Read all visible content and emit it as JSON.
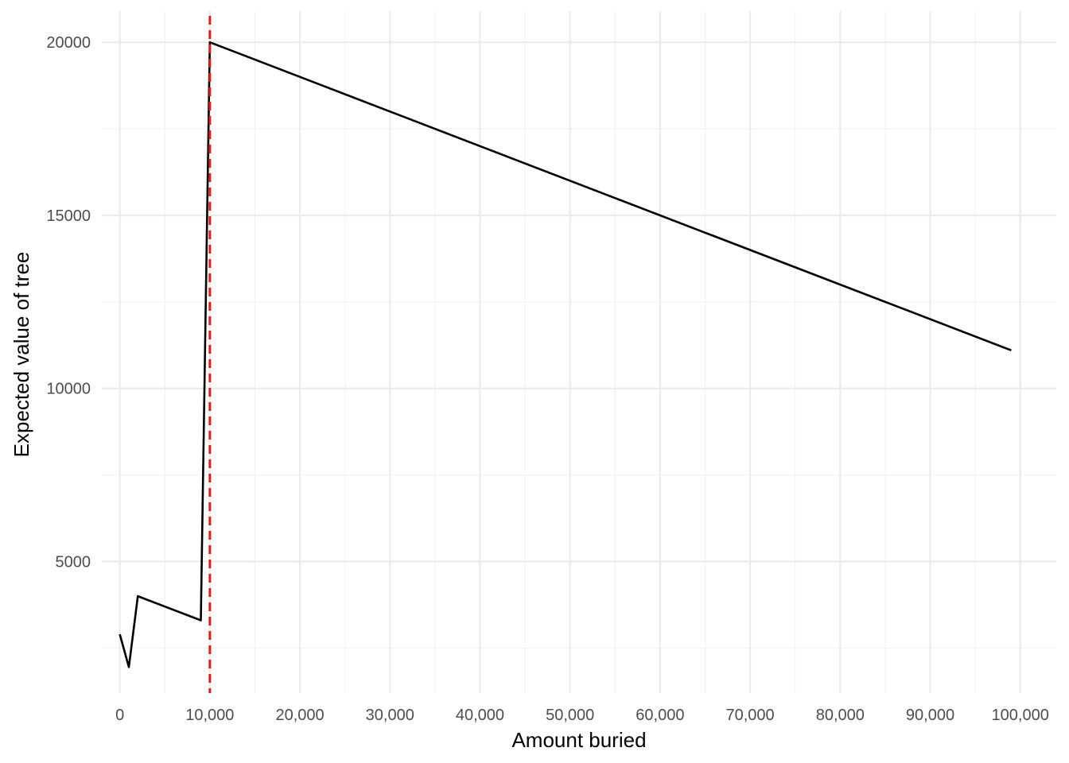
{
  "chart_data": {
    "type": "line",
    "title": "",
    "xlabel": "Amount buried",
    "ylabel": "Expected value of tree",
    "xlim": [
      -2000,
      104000
    ],
    "ylim": [
      1200,
      20900
    ],
    "x_ticks": [
      0,
      10000,
      20000,
      30000,
      40000,
      50000,
      60000,
      70000,
      80000,
      90000,
      100000
    ],
    "x_tick_labels": [
      "0",
      "10,000",
      "20,000",
      "30,000",
      "40,000",
      "50,000",
      "60,000",
      "70,000",
      "80,000",
      "90,000",
      "100,000"
    ],
    "y_ticks": [
      5000,
      10000,
      15000,
      20000
    ],
    "y_tick_labels": [
      "5000",
      "10000",
      "15000",
      "20000"
    ],
    "grid": true,
    "legend": "none",
    "series": [
      {
        "color": "#000000",
        "x": [
          0,
          1000,
          2000,
          9000,
          10000,
          99000
        ],
        "y": [
          2900,
          1950,
          4000,
          3300,
          20000,
          11100
        ]
      }
    ],
    "reference_lines": [
      {
        "orientation": "vertical",
        "x": 10000,
        "color": "#e41a1c",
        "style": "dashed"
      }
    ]
  }
}
